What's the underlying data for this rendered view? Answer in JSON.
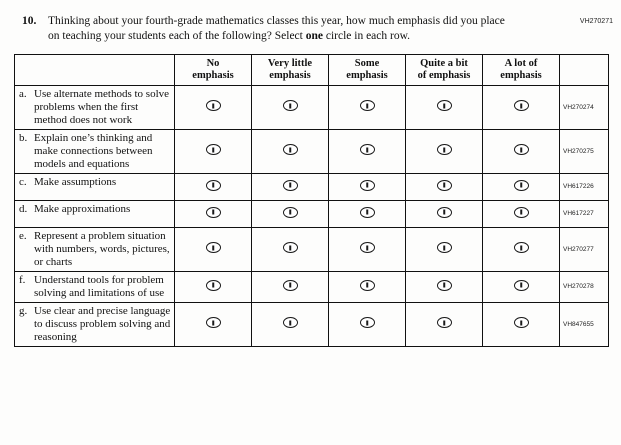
{
  "page": {
    "form_code": "VH270271"
  },
  "question": {
    "number": "10.",
    "text_before": "Thinking about your fourth-grade mathematics classes this year, how much emphasis did you place on teaching your students each of the following? Select ",
    "text_bold": "one",
    "text_after": " circle in each row."
  },
  "table": {
    "option_headers": [
      [
        "No",
        "emphasis"
      ],
      [
        "Very little",
        "emphasis"
      ],
      [
        "Some",
        "emphasis"
      ],
      [
        "Quite a bit",
        "of emphasis"
      ],
      [
        "A lot of",
        "emphasis"
      ]
    ],
    "rows": [
      {
        "letter": "a.",
        "label": "Use alternate methods to solve problems when the first method does not work",
        "code": "VH270274"
      },
      {
        "letter": "b.",
        "label": "Explain one’s thinking and make connections between models and equations",
        "code": "VH270275"
      },
      {
        "letter": "c.",
        "label": "Make assumptions",
        "code": "VH617226"
      },
      {
        "letter": "d.",
        "label": "Make approximations",
        "code": "VH617227"
      },
      {
        "letter": "e.",
        "label": "Represent a problem situation with numbers, words, pictures, or charts",
        "code": "VH270277"
      },
      {
        "letter": "f.",
        "label": "Understand tools for problem solving and limitations of use",
        "code": "VH270278"
      },
      {
        "letter": "g.",
        "label": "Use clear and precise language to discuss problem solving and reasoning",
        "code": "VH847655"
      }
    ]
  }
}
